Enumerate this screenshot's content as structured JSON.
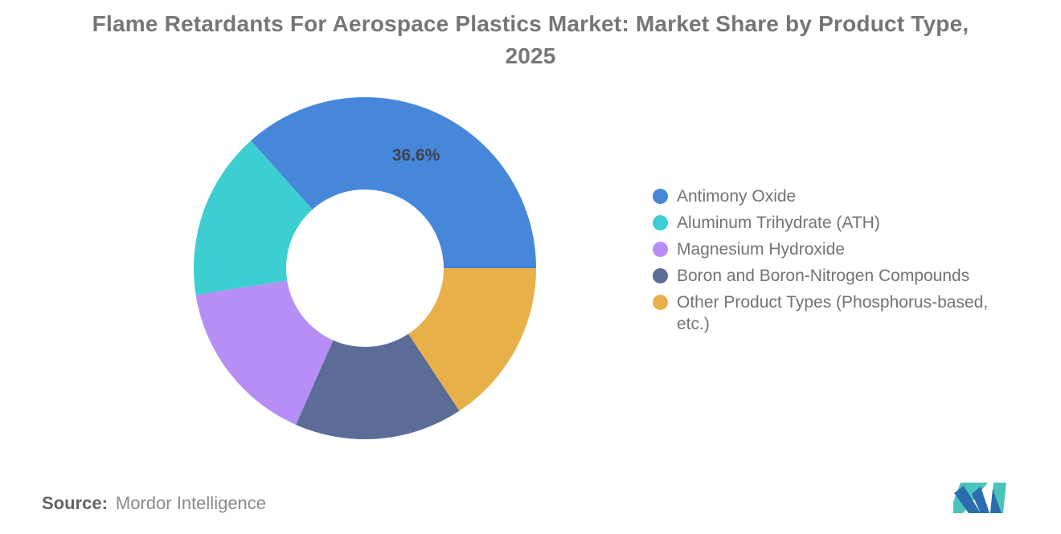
{
  "title": "Flame Retardants For Aerospace Plastics Market: Market Share by Product Type, 2025",
  "chart_data": {
    "type": "pie",
    "subtype": "donut",
    "title": "Flame Retardants For Aerospace Plastics Market: Market Share by Product Type, 2025",
    "unit": "%",
    "inner_radius_ratio": 0.46,
    "start_angle_deg_clockwise_from_top": 90,
    "direction": "counterclockwise",
    "legend_position": "right",
    "slices": [
      {
        "name": "Antimony Oxide",
        "value": 36.6,
        "label": "36.6%",
        "color": "#4687D9"
      },
      {
        "name": "Aluminum Trihydrate (ATH)",
        "value": 15.9,
        "color": "#3DCED2"
      },
      {
        "name": "Magnesium Hydroxide",
        "value": 15.9,
        "color": "#B78EF5"
      },
      {
        "name": "Boron and Boron-Nitrogen Compounds",
        "value": 15.9,
        "color": "#5B6C97"
      },
      {
        "name": "Other Product Types (Phosphorus-based, etc.)",
        "value": 15.7,
        "color": "#E8B049"
      }
    ]
  },
  "source": {
    "prefix": "Source:",
    "text": "Mordor Intelligence"
  },
  "logo": {
    "name": "Mordor Intelligence",
    "colors": {
      "blue": "#2A6CAE",
      "teal": "#4CC2BC"
    }
  },
  "colors": {
    "background": "#FFFFFF",
    "title_text": "#76767A",
    "legend_text": "#737377",
    "slice_label_text": "#3F434D",
    "source_prefix_text": "#636367",
    "source_text": "#8A8A8E"
  }
}
